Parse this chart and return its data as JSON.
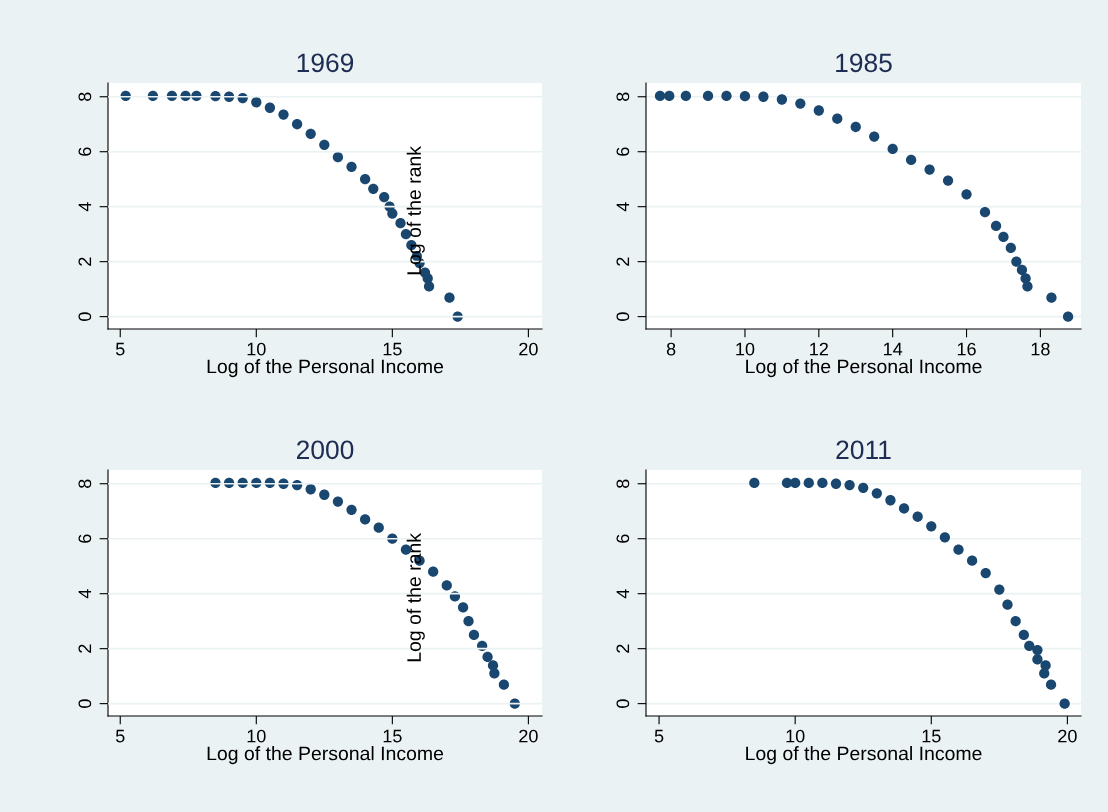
{
  "chart_data": [
    {
      "type": "scatter",
      "title": "1969",
      "xlabel": "Log of the Personal Income",
      "ylabel": "Log of the rank",
      "color": "#1a476f",
      "marker": "circle",
      "grid": "y",
      "xlim": [
        4.55,
        20.5
      ],
      "xticks": [
        5,
        10,
        15,
        20
      ],
      "ylim": [
        -0.45,
        8.5
      ],
      "yticks": [
        0,
        2,
        4,
        6,
        8
      ],
      "x": [
        5.2,
        6.2,
        6.9,
        7.4,
        7.8,
        8.5,
        9.0,
        9.5,
        10.0,
        10.5,
        11.0,
        11.5,
        12.0,
        12.5,
        13.0,
        13.5,
        14.0,
        14.3,
        14.7,
        14.9,
        15.0,
        15.3,
        15.5,
        15.7,
        15.9,
        16.0,
        16.2,
        16.3,
        16.35,
        17.1,
        17.4
      ],
      "values": [
        8.03,
        8.03,
        8.03,
        8.03,
        8.03,
        8.02,
        8.0,
        7.95,
        7.8,
        7.6,
        7.35,
        7.0,
        6.65,
        6.25,
        5.8,
        5.45,
        5.0,
        4.65,
        4.35,
        4.0,
        3.75,
        3.4,
        3.0,
        2.6,
        2.2,
        1.95,
        1.6,
        1.39,
        1.1,
        0.69,
        0
      ]
    },
    {
      "type": "scatter",
      "title": "1985",
      "xlabel": "Log of the Personal Income",
      "color": "#1a476f",
      "marker": "circle",
      "grid": "y",
      "xlim": [
        7.32,
        19.1
      ],
      "xticks": [
        8,
        10,
        12,
        14,
        16,
        18
      ],
      "ylim": [
        -0.45,
        8.5
      ],
      "yticks": [
        0,
        2,
        4,
        6,
        8
      ],
      "x": [
        7.7,
        7.95,
        8.4,
        9.0,
        9.5,
        10.0,
        10.5,
        11.0,
        11.5,
        12.0,
        12.5,
        13.0,
        13.5,
        14.0,
        14.5,
        15.0,
        15.5,
        16.0,
        16.5,
        16.8,
        17.0,
        17.2,
        17.35,
        17.5,
        17.6,
        17.65,
        18.3,
        18.75
      ],
      "values": [
        8.03,
        8.03,
        8.03,
        8.03,
        8.03,
        8.02,
        8.0,
        7.9,
        7.75,
        7.5,
        7.2,
        6.9,
        6.55,
        6.1,
        5.7,
        5.35,
        4.95,
        4.45,
        3.8,
        3.3,
        2.9,
        2.5,
        2.0,
        1.7,
        1.39,
        1.1,
        0.69,
        0
      ]
    },
    {
      "type": "scatter",
      "title": "2000",
      "xlabel": "Log of the Personal Income",
      "ylabel": "Log of the rank",
      "color": "#1a476f",
      "marker": "circle",
      "grid": "y",
      "xlim": [
        4.55,
        20.5
      ],
      "xticks": [
        5,
        10,
        15,
        20
      ],
      "ylim": [
        -0.45,
        8.5
      ],
      "yticks": [
        0,
        2,
        4,
        6,
        8
      ],
      "x": [
        8.5,
        9.0,
        9.5,
        10.0,
        10.5,
        11.0,
        11.5,
        12.0,
        12.5,
        13.0,
        13.5,
        14.0,
        14.5,
        15.0,
        15.5,
        16.0,
        16.5,
        17.0,
        17.3,
        17.6,
        17.8,
        18.0,
        18.3,
        18.5,
        18.7,
        18.75,
        19.1,
        19.5
      ],
      "values": [
        8.03,
        8.03,
        8.03,
        8.03,
        8.03,
        8.0,
        7.95,
        7.8,
        7.6,
        7.35,
        7.05,
        6.7,
        6.4,
        6.0,
        5.6,
        5.2,
        4.8,
        4.3,
        3.9,
        3.5,
        3.0,
        2.5,
        2.1,
        1.7,
        1.39,
        1.1,
        0.69,
        0
      ]
    },
    {
      "type": "scatter",
      "title": "2011",
      "xlabel": "Log of the Personal Income",
      "color": "#1a476f",
      "marker": "circle",
      "grid": "y",
      "xlim": [
        4.52,
        20.5
      ],
      "xticks": [
        5,
        10,
        15,
        20
      ],
      "ylim": [
        -0.45,
        8.5
      ],
      "yticks": [
        0,
        2,
        4,
        6,
        8
      ],
      "x": [
        8.5,
        9.7,
        10.0,
        10.5,
        11.0,
        11.5,
        12.0,
        12.5,
        13.0,
        13.5,
        14.0,
        14.5,
        15.0,
        15.5,
        16.0,
        16.5,
        17.0,
        17.5,
        17.8,
        18.1,
        18.4,
        18.6,
        18.9,
        18.9,
        19.2,
        19.15,
        19.4,
        19.9
      ],
      "values": [
        8.03,
        8.03,
        8.03,
        8.03,
        8.03,
        8.0,
        7.95,
        7.85,
        7.65,
        7.4,
        7.1,
        6.8,
        6.45,
        6.05,
        5.6,
        5.2,
        4.75,
        4.15,
        3.6,
        3.0,
        2.5,
        2.1,
        1.95,
        1.61,
        1.39,
        1.1,
        0.69,
        0
      ]
    }
  ]
}
